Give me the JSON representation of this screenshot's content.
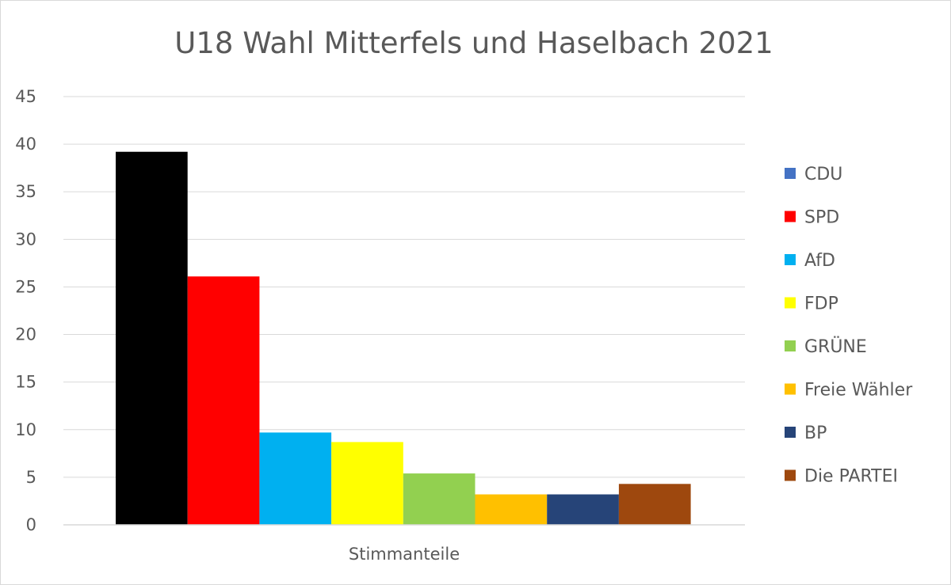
{
  "chart_data": {
    "type": "bar",
    "title": "U18 Wahl Mitterfels und Haselbach 2021",
    "categories": [
      "Stimmanteile"
    ],
    "xlabel": "",
    "ylabel": "",
    "ylim": [
      0,
      45
    ],
    "yticks": [
      "0",
      "5",
      "10",
      "15",
      "20",
      "25",
      "30",
      "35",
      "40",
      "45"
    ],
    "grid": true,
    "legend_position": "right",
    "series": [
      {
        "name": "CDU",
        "values": [
          39.2
        ],
        "bar_color": "#000000",
        "legend_color": "#4472c4"
      },
      {
        "name": "SPD",
        "values": [
          26.1
        ],
        "bar_color": "#ff0000",
        "legend_color": "#ff0000"
      },
      {
        "name": "AfD",
        "values": [
          9.7
        ],
        "bar_color": "#00b0f0",
        "legend_color": "#00b0f0"
      },
      {
        "name": "FDP",
        "values": [
          8.7
        ],
        "bar_color": "#ffff00",
        "legend_color": "#ffff00"
      },
      {
        "name": "GRÜNE",
        "values": [
          5.4
        ],
        "bar_color": "#92d050",
        "legend_color": "#92d050"
      },
      {
        "name": "Freie Wähler",
        "values": [
          3.2
        ],
        "bar_color": "#ffc000",
        "legend_color": "#ffc000"
      },
      {
        "name": "BP",
        "values": [
          3.2
        ],
        "bar_color": "#264478",
        "legend_color": "#264478"
      },
      {
        "name": "Die PARTEI",
        "values": [
          4.3
        ],
        "bar_color": "#9e480e",
        "legend_color": "#9e480e"
      }
    ]
  }
}
